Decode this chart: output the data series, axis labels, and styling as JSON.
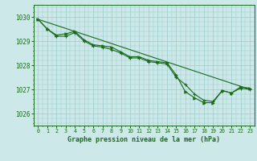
{
  "title": "Graphe pression niveau de la mer (hPa)",
  "background_color": "#cce8e8",
  "grid_color": "#99cccc",
  "line_color": "#1a6b1a",
  "xlim": [
    -0.5,
    23.5
  ],
  "ylim": [
    1025.5,
    1030.5
  ],
  "xticks": [
    0,
    1,
    2,
    3,
    4,
    5,
    6,
    7,
    8,
    9,
    10,
    11,
    12,
    13,
    14,
    15,
    16,
    17,
    18,
    19,
    20,
    21,
    22,
    23
  ],
  "yticks": [
    1026,
    1027,
    1028,
    1029,
    1030
  ],
  "series_cross": {
    "x": [
      0,
      1,
      2,
      3,
      4,
      5,
      6,
      7,
      8,
      9,
      10,
      11,
      12,
      13,
      14,
      15,
      16,
      17,
      18,
      19,
      20,
      21,
      22,
      23
    ],
    "y": [
      1029.9,
      1029.5,
      1029.2,
      1029.2,
      1029.35,
      1029.0,
      1028.8,
      1028.75,
      1028.65,
      1028.5,
      1028.3,
      1028.3,
      1028.15,
      1028.1,
      1028.05,
      1027.5,
      1027.2,
      1026.8,
      1026.55,
      1026.5,
      1026.95,
      1026.85,
      1027.05,
      1027.0
    ]
  },
  "series_arrow": {
    "x": [
      0,
      1,
      2,
      3,
      4,
      5,
      6,
      7,
      8,
      9,
      10,
      11,
      12,
      13,
      14,
      15,
      16,
      17,
      18,
      19,
      20,
      21,
      22,
      23
    ],
    "y": [
      1029.9,
      1029.5,
      1029.25,
      1029.3,
      1029.4,
      1029.05,
      1028.85,
      1028.8,
      1028.75,
      1028.55,
      1028.35,
      1028.35,
      1028.2,
      1028.15,
      1028.1,
      1027.6,
      1026.9,
      1026.65,
      1026.45,
      1026.45,
      1026.95,
      1026.85,
      1027.1,
      1027.05
    ]
  },
  "series_line": {
    "x": [
      0,
      4,
      23
    ],
    "y": [
      1029.9,
      1029.4,
      1027.0
    ]
  }
}
